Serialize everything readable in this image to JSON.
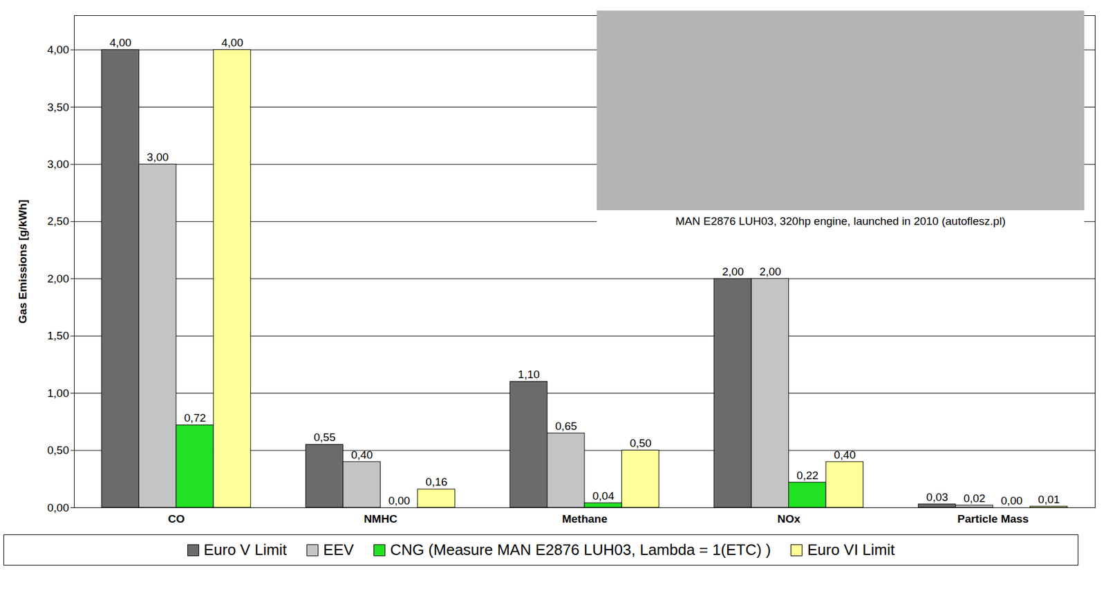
{
  "chart_data": {
    "type": "bar",
    "y_label": "Gas Emissions [g/kWh]",
    "categories": [
      "CO",
      "NMHC",
      "Methane",
      "NOx",
      "Particle Mass"
    ],
    "series": [
      {
        "name": "Euro V Limit",
        "color": "#6b6b6b",
        "values": [
          4.0,
          0.55,
          1.1,
          2.0,
          0.03
        ],
        "value_labels": [
          "4,00",
          "0,55",
          "1,10",
          "2,00",
          "0,03"
        ]
      },
      {
        "name": "EEV",
        "color": "#c4c4c4",
        "values": [
          3.0,
          0.4,
          0.65,
          2.0,
          0.02
        ],
        "value_labels": [
          "3,00",
          "0,40",
          "0,65",
          "2,00",
          "0,02"
        ]
      },
      {
        "name": "CNG (Measure MAN E2876 LUH03, Lambda = 1(ETC) )",
        "color": "#22e022",
        "values": [
          0.72,
          0.0,
          0.04,
          0.22,
          0.0
        ],
        "value_labels": [
          "0,72",
          "0,00",
          "0,04",
          "0,22",
          "0,00"
        ]
      },
      {
        "name": "Euro VI Limit",
        "color": "#ffff99",
        "values": [
          4.0,
          0.16,
          0.5,
          0.4,
          0.01
        ],
        "value_labels": [
          "4,00",
          "0,16",
          "0,50",
          "0,40",
          "0,01"
        ]
      }
    ],
    "ylim": [
      0,
      4.3
    ],
    "yticks": [
      {
        "value": 0,
        "label": "0,00"
      },
      {
        "value": 0.5,
        "label": "0,50"
      },
      {
        "value": 1,
        "label": "1,00"
      },
      {
        "value": 1.5,
        "label": "1,50"
      },
      {
        "value": 2,
        "label": "2,00"
      },
      {
        "value": 2.5,
        "label": "2,50"
      },
      {
        "value": 3,
        "label": "3,00"
      },
      {
        "value": 3.5,
        "label": "3,50"
      },
      {
        "value": 4,
        "label": "4,00"
      }
    ],
    "grid": true,
    "data_labels": true,
    "legend": "bottom",
    "annotations": [
      "MAN E2876 LUH03, 320hp engine, launched in 2010 (autoflesz.pl)"
    ]
  }
}
